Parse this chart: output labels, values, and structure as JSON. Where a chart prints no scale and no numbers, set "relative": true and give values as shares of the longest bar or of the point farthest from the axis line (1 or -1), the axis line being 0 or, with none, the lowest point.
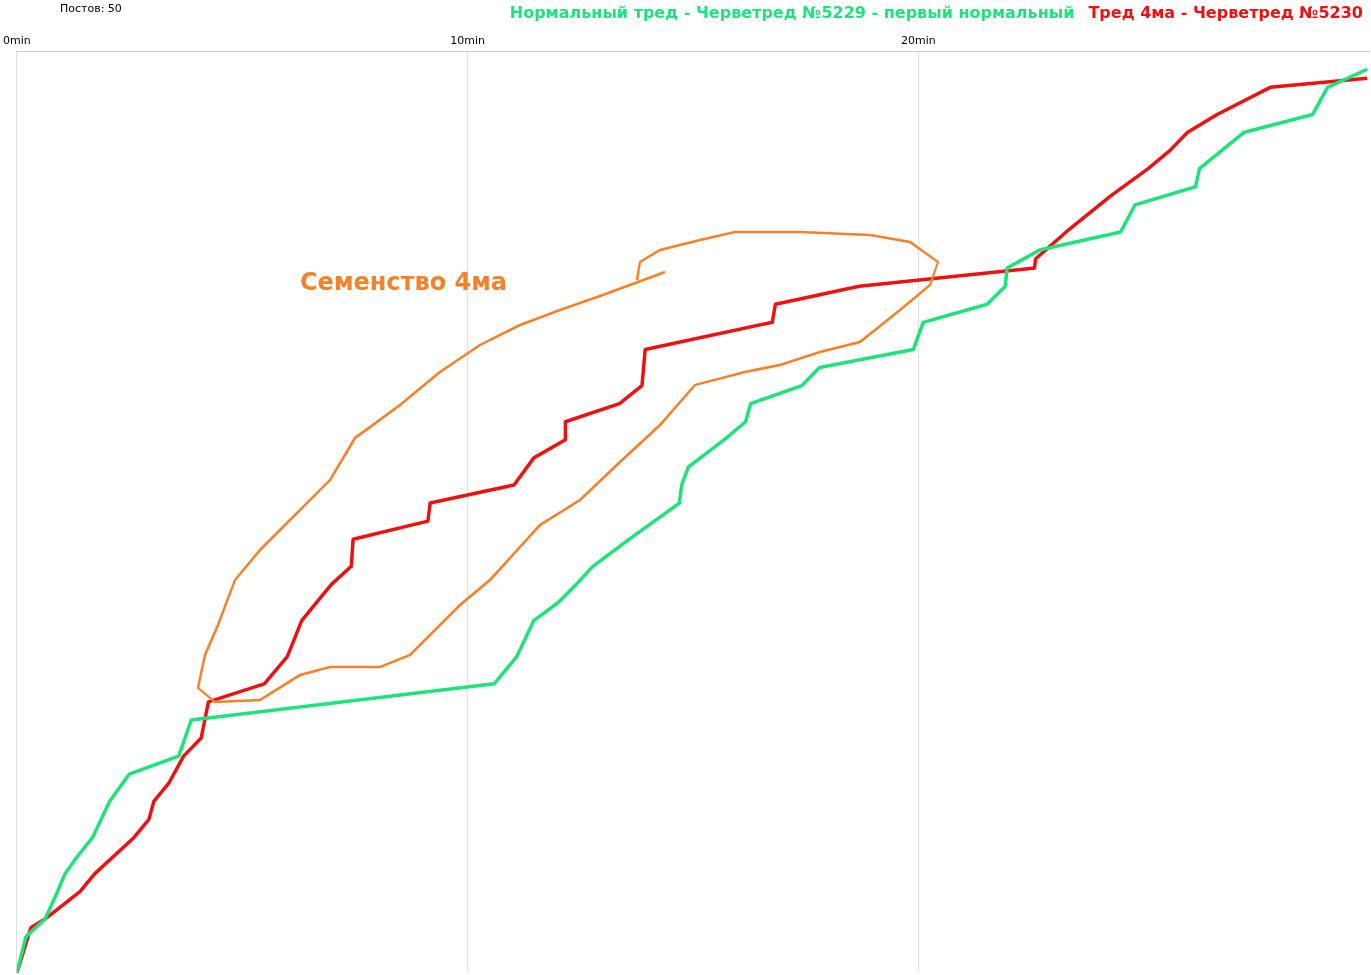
{
  "chart_data": {
    "type": "line",
    "relative": true,
    "ylabel": "Постов: 50",
    "xlim": [
      0,
      30
    ],
    "xticks": [
      {
        "value": 0,
        "label": "0min"
      },
      {
        "value": 10,
        "label": "10min"
      },
      {
        "value": 20,
        "label": "20min"
      }
    ],
    "grid": "x",
    "legend": "top right",
    "marker": "none",
    "line_style": "solid",
    "annotations": [
      "Семенство 4ма"
    ],
    "series": [
      {
        "name": "Нормальный тред - Черветред №5229 - первый нормальный",
        "color": "#1ee37a",
        "x": [
          0,
          0.2,
          0.63,
          0.9,
          1.07,
          1.36,
          1.68,
          2.06,
          2.49,
          3.59,
          3.87,
          10.59,
          11.09,
          11.47,
          12.01,
          12.41,
          12.78,
          13.59,
          14.7,
          14.75,
          14.9,
          15.69,
          16.17,
          16.28,
          17.42,
          17.81,
          19.89,
          20.11,
          21.53,
          21.93,
          21.97,
          22.69,
          24.49,
          24.81,
          26.15,
          26.24,
          27.22,
          28.75,
          29.08,
          29.96
        ],
        "values": [
          0,
          0.04,
          0.06,
          0.09,
          0.11,
          0.13,
          0.15,
          0.19,
          0.22,
          0.24,
          0.28,
          0.32,
          0.35,
          0.39,
          0.41,
          0.43,
          0.45,
          0.48,
          0.52,
          0.54,
          0.56,
          0.59,
          0.61,
          0.63,
          0.65,
          0.67,
          0.69,
          0.72,
          0.74,
          0.76,
          0.78,
          0.8,
          0.82,
          0.85,
          0.87,
          0.89,
          0.93,
          0.95,
          0.98,
          1
        ]
      },
      {
        "name": "Тред 4ма - Черветред №5230",
        "color": "#ee1111",
        "x": [
          0,
          0.31,
          0.63,
          1.4,
          1.73,
          2.6,
          2.93,
          3.04,
          3.37,
          3.7,
          4.09,
          4.25,
          5.49,
          6.0,
          6.32,
          6.65,
          6.98,
          7.42,
          7.46,
          9.12,
          9.17,
          11.03,
          11.47,
          12.17,
          12.17,
          13.37,
          13.87,
          13.94,
          16.76,
          16.83,
          18.69,
          22.58,
          22.6,
          23.28,
          24.27,
          25.1,
          25.58,
          25.97,
          26.63,
          27.81,
          29.96
        ],
        "values": [
          0,
          0.05,
          0.06,
          0.09,
          0.11,
          0.15,
          0.17,
          0.19,
          0.21,
          0.24,
          0.26,
          0.3,
          0.32,
          0.35,
          0.39,
          0.41,
          0.43,
          0.45,
          0.48,
          0.5,
          0.52,
          0.54,
          0.57,
          0.59,
          0.61,
          0.63,
          0.65,
          0.69,
          0.72,
          0.74,
          0.76,
          0.78,
          0.79,
          0.82,
          0.86,
          0.89,
          0.91,
          0.93,
          0.95,
          0.98,
          0.99
        ]
      }
    ]
  }
}
